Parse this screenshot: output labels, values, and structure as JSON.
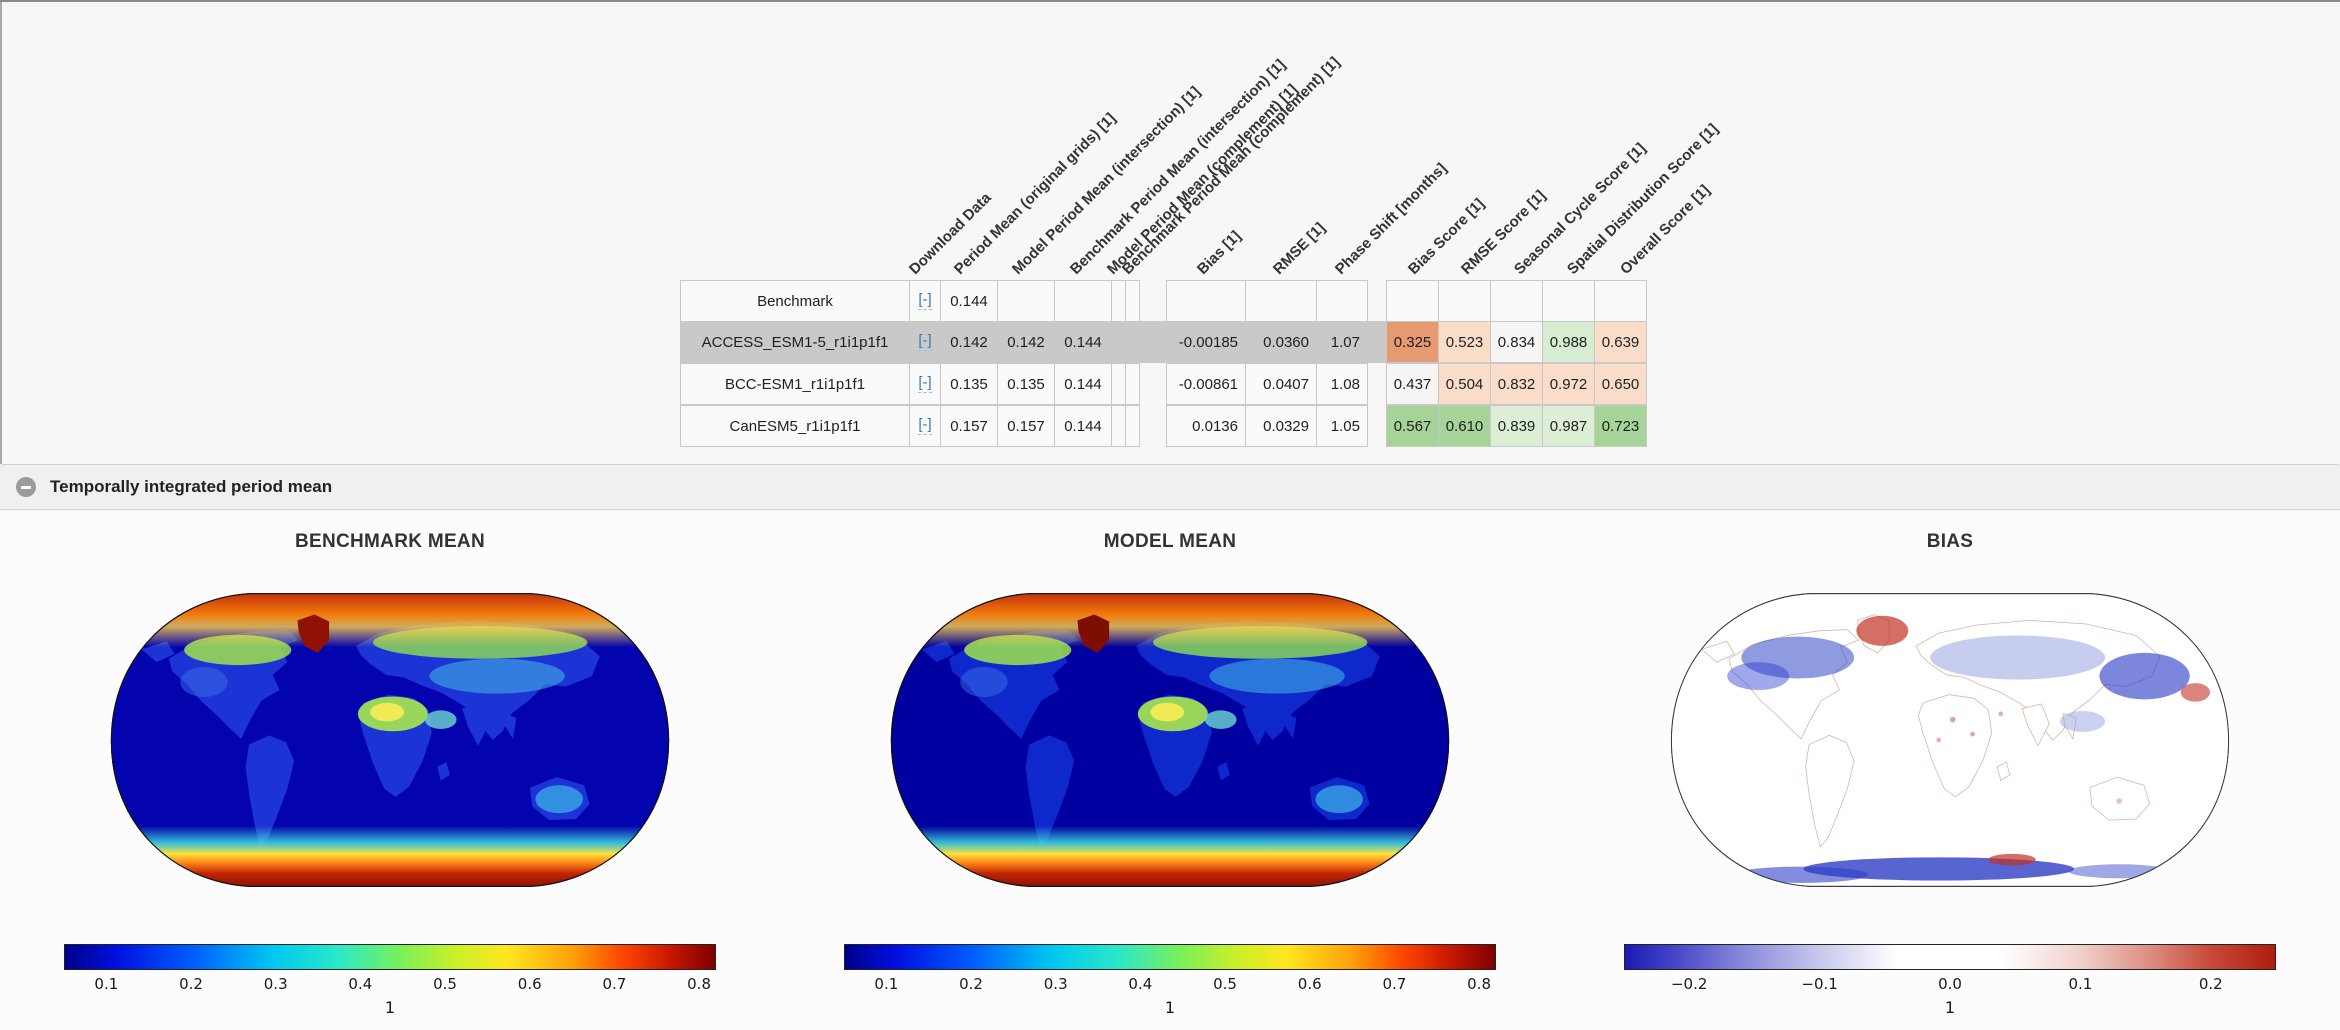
{
  "table": {
    "column_headers": [
      "Download Data",
      "Period Mean (original grids) [1]",
      "Model Period Mean (intersection) [1]",
      "Benchmark Period Mean (intersection) [1]",
      "Model Period Mean (complement) [1]",
      "Benchmark Period Mean (complement) [1]",
      "Bias [1]",
      "RMSE [1]",
      "Phase Shift [months]",
      "Bias Score [1]",
      "RMSE Score [1]",
      "Seasonal Cycle Score [1]",
      "Spatial Distribution Score [1]",
      "Overall Score [1]"
    ],
    "download_link_label": "[-]",
    "highlight_color": "#c9c9c9",
    "rows": [
      {
        "name": "Benchmark",
        "highlighted": false,
        "period_mean_original": "0.144",
        "model_period_mean_intersection": "",
        "benchmark_period_mean_intersection": "",
        "bias": "",
        "rmse": "",
        "phase_shift": "",
        "scores": [
          {
            "value": "",
            "color": ""
          },
          {
            "value": "",
            "color": ""
          },
          {
            "value": "",
            "color": ""
          },
          {
            "value": "",
            "color": ""
          },
          {
            "value": "",
            "color": ""
          }
        ]
      },
      {
        "name": "ACCESS_ESM1-5_r1i1p1f1",
        "highlighted": true,
        "period_mean_original": "0.142",
        "model_period_mean_intersection": "0.142",
        "benchmark_period_mean_intersection": "0.144",
        "bias": "-0.00185",
        "rmse": "0.0360",
        "phase_shift": "1.07",
        "scores": [
          {
            "value": "0.325",
            "color": "#e69a72"
          },
          {
            "value": "0.523",
            "color": "#f9ddc9"
          },
          {
            "value": "0.834",
            "color": "#f6f5f4"
          },
          {
            "value": "0.988",
            "color": "#d7ecd0"
          },
          {
            "value": "0.639",
            "color": "#f9ddc9"
          }
        ]
      },
      {
        "name": "BCC-ESM1_r1i1p1f1",
        "highlighted": false,
        "period_mean_original": "0.135",
        "model_period_mean_intersection": "0.135",
        "benchmark_period_mean_intersection": "0.144",
        "bias": "-0.00861",
        "rmse": "0.0407",
        "phase_shift": "1.08",
        "scores": [
          {
            "value": "0.437",
            "color": "#f6f5f4"
          },
          {
            "value": "0.504",
            "color": "#f9ddc9"
          },
          {
            "value": "0.832",
            "color": "#f9ddc9"
          },
          {
            "value": "0.972",
            "color": "#f9ddc9"
          },
          {
            "value": "0.650",
            "color": "#f9ddc9"
          }
        ]
      },
      {
        "name": "CanESM5_r1i1p1f1",
        "highlighted": false,
        "period_mean_original": "0.157",
        "model_period_mean_intersection": "0.157",
        "benchmark_period_mean_intersection": "0.144",
        "bias": "0.0136",
        "rmse": "0.0329",
        "phase_shift": "1.05",
        "scores": [
          {
            "value": "0.567",
            "color": "#a5d398"
          },
          {
            "value": "0.610",
            "color": "#a5d398"
          },
          {
            "value": "0.839",
            "color": "#ddeed6"
          },
          {
            "value": "0.987",
            "color": "#ddeed6"
          },
          {
            "value": "0.723",
            "color": "#a5d398"
          }
        ]
      }
    ]
  },
  "section": {
    "title": "Temporally integrated period mean",
    "icon": "collapse-minus-icon"
  },
  "panels": [
    {
      "title": "BENCHMARK MEAN",
      "map_kind": "jet-benchmark",
      "colorbar": {
        "type": "jet",
        "vmin": 0.05,
        "vmax": 0.82,
        "tick_values": [
          0.1,
          0.2,
          0.3,
          0.4,
          0.5,
          0.6,
          0.7,
          0.8
        ],
        "ticks": [
          "0.1",
          "0.2",
          "0.3",
          "0.4",
          "0.5",
          "0.6",
          "0.7",
          "0.8"
        ],
        "units": "1"
      }
    },
    {
      "title": "MODEL MEAN",
      "map_kind": "jet-model",
      "colorbar": {
        "type": "jet",
        "vmin": 0.05,
        "vmax": 0.82,
        "tick_values": [
          0.1,
          0.2,
          0.3,
          0.4,
          0.5,
          0.6,
          0.7,
          0.8
        ],
        "ticks": [
          "0.1",
          "0.2",
          "0.3",
          "0.4",
          "0.5",
          "0.6",
          "0.7",
          "0.8"
        ],
        "units": "1"
      }
    },
    {
      "title": "BIAS",
      "map_kind": "diverging-bias",
      "colorbar": {
        "type": "diverging",
        "vmin": -0.25,
        "vmax": 0.25,
        "tick_values": [
          -0.2,
          -0.1,
          0.0,
          0.1,
          0.2
        ],
        "ticks": [
          "−0.2",
          "−0.1",
          "0.0",
          "0.1",
          "0.2"
        ],
        "units": "1"
      }
    }
  ]
}
